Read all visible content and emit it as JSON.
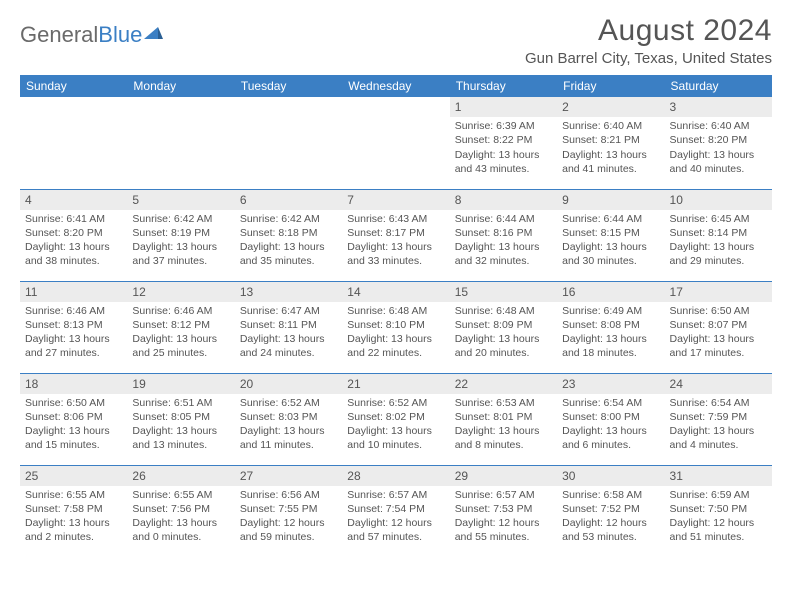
{
  "brand": {
    "part1": "General",
    "part2": "Blue"
  },
  "title": "August 2024",
  "location": "Gun Barrel City, Texas, United States",
  "colors": {
    "header_bg": "#3b7fc4",
    "header_text": "#ffffff",
    "daynum_bg": "#ececec",
    "text": "#555555",
    "rule": "#3b7fc4",
    "logo_gray": "#6a6a6a",
    "logo_blue": "#3b7fc4"
  },
  "weekdays": [
    "Sunday",
    "Monday",
    "Tuesday",
    "Wednesday",
    "Thursday",
    "Friday",
    "Saturday"
  ],
  "fonts": {
    "title_size": 30,
    "location_size": 15,
    "th_size": 12,
    "cell_size": 10.5
  },
  "weeks": [
    [
      null,
      null,
      null,
      null,
      {
        "n": "1",
        "sr": "6:39 AM",
        "ss": "8:22 PM",
        "dl": "13 hours and 43 minutes."
      },
      {
        "n": "2",
        "sr": "6:40 AM",
        "ss": "8:21 PM",
        "dl": "13 hours and 41 minutes."
      },
      {
        "n": "3",
        "sr": "6:40 AM",
        "ss": "8:20 PM",
        "dl": "13 hours and 40 minutes."
      }
    ],
    [
      {
        "n": "4",
        "sr": "6:41 AM",
        "ss": "8:20 PM",
        "dl": "13 hours and 38 minutes."
      },
      {
        "n": "5",
        "sr": "6:42 AM",
        "ss": "8:19 PM",
        "dl": "13 hours and 37 minutes."
      },
      {
        "n": "6",
        "sr": "6:42 AM",
        "ss": "8:18 PM",
        "dl": "13 hours and 35 minutes."
      },
      {
        "n": "7",
        "sr": "6:43 AM",
        "ss": "8:17 PM",
        "dl": "13 hours and 33 minutes."
      },
      {
        "n": "8",
        "sr": "6:44 AM",
        "ss": "8:16 PM",
        "dl": "13 hours and 32 minutes."
      },
      {
        "n": "9",
        "sr": "6:44 AM",
        "ss": "8:15 PM",
        "dl": "13 hours and 30 minutes."
      },
      {
        "n": "10",
        "sr": "6:45 AM",
        "ss": "8:14 PM",
        "dl": "13 hours and 29 minutes."
      }
    ],
    [
      {
        "n": "11",
        "sr": "6:46 AM",
        "ss": "8:13 PM",
        "dl": "13 hours and 27 minutes."
      },
      {
        "n": "12",
        "sr": "6:46 AM",
        "ss": "8:12 PM",
        "dl": "13 hours and 25 minutes."
      },
      {
        "n": "13",
        "sr": "6:47 AM",
        "ss": "8:11 PM",
        "dl": "13 hours and 24 minutes."
      },
      {
        "n": "14",
        "sr": "6:48 AM",
        "ss": "8:10 PM",
        "dl": "13 hours and 22 minutes."
      },
      {
        "n": "15",
        "sr": "6:48 AM",
        "ss": "8:09 PM",
        "dl": "13 hours and 20 minutes."
      },
      {
        "n": "16",
        "sr": "6:49 AM",
        "ss": "8:08 PM",
        "dl": "13 hours and 18 minutes."
      },
      {
        "n": "17",
        "sr": "6:50 AM",
        "ss": "8:07 PM",
        "dl": "13 hours and 17 minutes."
      }
    ],
    [
      {
        "n": "18",
        "sr": "6:50 AM",
        "ss": "8:06 PM",
        "dl": "13 hours and 15 minutes."
      },
      {
        "n": "19",
        "sr": "6:51 AM",
        "ss": "8:05 PM",
        "dl": "13 hours and 13 minutes."
      },
      {
        "n": "20",
        "sr": "6:52 AM",
        "ss": "8:03 PM",
        "dl": "13 hours and 11 minutes."
      },
      {
        "n": "21",
        "sr": "6:52 AM",
        "ss": "8:02 PM",
        "dl": "13 hours and 10 minutes."
      },
      {
        "n": "22",
        "sr": "6:53 AM",
        "ss": "8:01 PM",
        "dl": "13 hours and 8 minutes."
      },
      {
        "n": "23",
        "sr": "6:54 AM",
        "ss": "8:00 PM",
        "dl": "13 hours and 6 minutes."
      },
      {
        "n": "24",
        "sr": "6:54 AM",
        "ss": "7:59 PM",
        "dl": "13 hours and 4 minutes."
      }
    ],
    [
      {
        "n": "25",
        "sr": "6:55 AM",
        "ss": "7:58 PM",
        "dl": "13 hours and 2 minutes."
      },
      {
        "n": "26",
        "sr": "6:55 AM",
        "ss": "7:56 PM",
        "dl": "13 hours and 0 minutes."
      },
      {
        "n": "27",
        "sr": "6:56 AM",
        "ss": "7:55 PM",
        "dl": "12 hours and 59 minutes."
      },
      {
        "n": "28",
        "sr": "6:57 AM",
        "ss": "7:54 PM",
        "dl": "12 hours and 57 minutes."
      },
      {
        "n": "29",
        "sr": "6:57 AM",
        "ss": "7:53 PM",
        "dl": "12 hours and 55 minutes."
      },
      {
        "n": "30",
        "sr": "6:58 AM",
        "ss": "7:52 PM",
        "dl": "12 hours and 53 minutes."
      },
      {
        "n": "31",
        "sr": "6:59 AM",
        "ss": "7:50 PM",
        "dl": "12 hours and 51 minutes."
      }
    ]
  ],
  "labels": {
    "sunrise": "Sunrise:",
    "sunset": "Sunset:",
    "daylight": "Daylight:"
  }
}
